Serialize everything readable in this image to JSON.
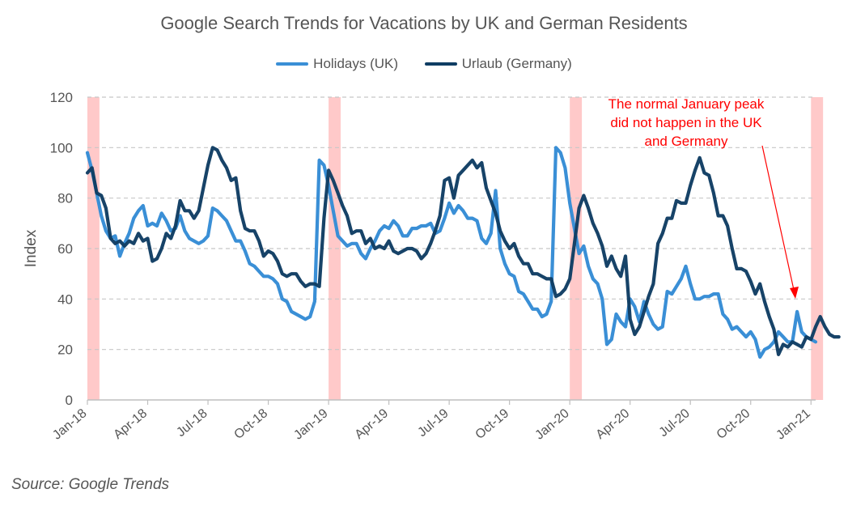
{
  "chart_data": {
    "type": "line",
    "title": "Google Search Trends for Vacations by UK and German Residents",
    "ylabel": "Index",
    "xlabel": "",
    "ylim": [
      0,
      120
    ],
    "yticks": [
      0,
      20,
      40,
      60,
      80,
      100,
      120
    ],
    "grid": "horizontal dashed",
    "legend_position": "top",
    "x_start": "2018-01",
    "x_tick_labels": [
      "Jan-18",
      "Apr-18",
      "Jul-18",
      "Oct-18",
      "Jan-19",
      "Apr-19",
      "Jul-19",
      "Oct-19",
      "Jan-20",
      "Apr-20",
      "Jul-20",
      "Oct-20",
      "Jan-21"
    ],
    "highlight_color": "#ffc9c9",
    "highlights": [
      {
        "label": "Jan-18"
      },
      {
        "label": "Jan-19"
      },
      {
        "label": "Jan-20"
      },
      {
        "label": "Jan-21"
      }
    ],
    "series": [
      {
        "name": "Holidays (UK)",
        "color": "#3a8fd6",
        "values": [
          98,
          91,
          82,
          73,
          67,
          64,
          65,
          57,
          62,
          66,
          72,
          75,
          77,
          69,
          70,
          69,
          74,
          71,
          67,
          68,
          73,
          67,
          64,
          63,
          62,
          63,
          65,
          76,
          75,
          73,
          71,
          67,
          63,
          63,
          59,
          54,
          53,
          51,
          49,
          49,
          48,
          46,
          40,
          39,
          35,
          34,
          33,
          32,
          33,
          39,
          95,
          93,
          85,
          75,
          65,
          63,
          61,
          62,
          62,
          58,
          56,
          60,
          63,
          67,
          69,
          68,
          71,
          69,
          65,
          65,
          68,
          68,
          69,
          69,
          70,
          66,
          67,
          72,
          78,
          74,
          77,
          75,
          72,
          72,
          71,
          64,
          62,
          66,
          83,
          60,
          54,
          50,
          49,
          43,
          42,
          39,
          36,
          36,
          33,
          34,
          39,
          100,
          98,
          92,
          78,
          68,
          58,
          61,
          53,
          48,
          46,
          40,
          22,
          24,
          34,
          31,
          29,
          40,
          37,
          31,
          39,
          34,
          30,
          28,
          29,
          43,
          42,
          45,
          48,
          53,
          46,
          40,
          40,
          41,
          41,
          42,
          42,
          34,
          32,
          28,
          29,
          27,
          25,
          27,
          24,
          17,
          20,
          21,
          23,
          27,
          25,
          23,
          23,
          35,
          27,
          25,
          24,
          23
        ]
      },
      {
        "name": "Urlaub (Germany)",
        "color": "#0f3d63",
        "values": [
          90,
          92,
          82,
          81,
          76,
          64,
          62,
          63,
          61,
          63,
          62,
          66,
          63,
          64,
          55,
          56,
          60,
          66,
          64,
          69,
          79,
          75,
          75,
          72,
          75,
          84,
          93,
          100,
          99,
          95,
          92,
          87,
          88,
          75,
          68,
          67,
          67,
          63,
          57,
          59,
          58,
          55,
          50,
          49,
          50,
          50,
          47,
          45,
          46,
          46,
          45,
          72,
          91,
          87,
          82,
          77,
          73,
          66,
          67,
          67,
          62,
          64,
          60,
          61,
          60,
          63,
          59,
          58,
          59,
          60,
          60,
          59,
          56,
          58,
          62,
          67,
          73,
          87,
          88,
          80,
          89,
          91,
          93,
          95,
          92,
          94,
          84,
          79,
          74,
          67,
          63,
          60,
          62,
          57,
          54,
          54,
          50,
          50,
          49,
          48,
          48,
          41,
          42,
          44,
          48,
          62,
          76,
          81,
          76,
          70,
          66,
          61,
          53,
          57,
          52,
          49,
          57,
          32,
          26,
          29,
          35,
          41,
          46,
          62,
          66,
          72,
          72,
          79,
          78,
          78,
          85,
          91,
          96,
          90,
          89,
          82,
          73,
          73,
          69,
          60,
          52,
          52,
          51,
          47,
          42,
          46,
          39,
          33,
          28,
          18,
          22,
          21,
          23,
          22,
          21,
          25,
          24,
          29,
          33,
          29,
          26,
          25,
          25
        ]
      }
    ],
    "annotation": {
      "text_lines": [
        "The normal January peak",
        "did not happen in the UK",
        "and Germany"
      ],
      "color": "#ff0000"
    }
  },
  "source": "Source: Google Trends"
}
